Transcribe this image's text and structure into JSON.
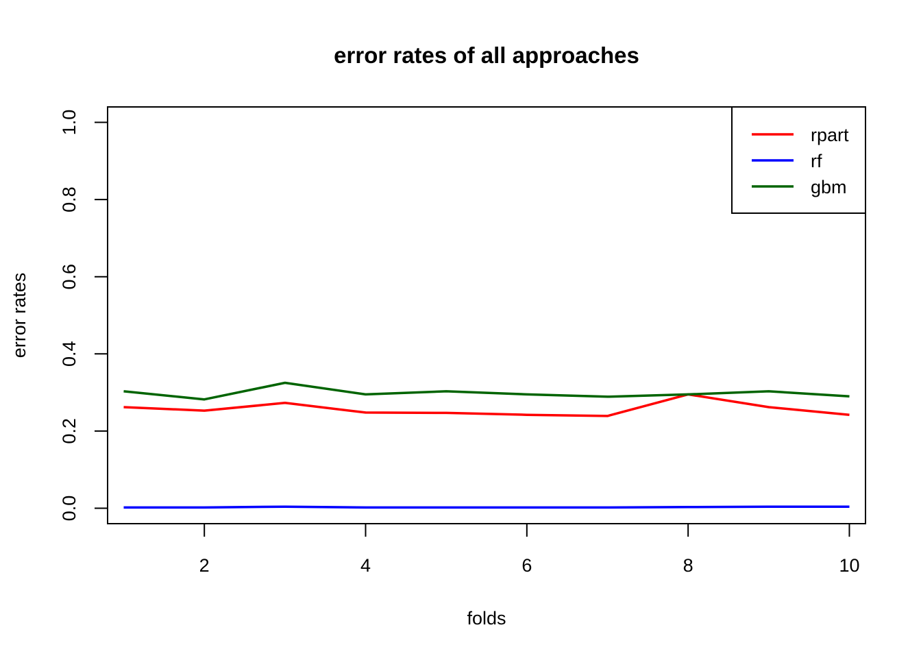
{
  "chart_data": {
    "type": "line",
    "title": "error rates of all approaches",
    "xlabel": "folds",
    "ylabel": "error rates",
    "x": [
      1,
      2,
      3,
      4,
      5,
      6,
      7,
      8,
      9,
      10
    ],
    "xlim": [
      0.8,
      10.2
    ],
    "ylim": [
      -0.04,
      1.04
    ],
    "xticks": [
      2,
      4,
      6,
      8,
      10
    ],
    "xtick_labels": [
      "2",
      "4",
      "6",
      "8",
      "10"
    ],
    "yticks": [
      0.0,
      0.2,
      0.4,
      0.6,
      0.8,
      1.0
    ],
    "ytick_labels": [
      "0.0",
      "0.2",
      "0.4",
      "0.6",
      "0.8",
      "1.0"
    ],
    "grid": false,
    "legend_position": "top-right",
    "series": [
      {
        "name": "rpart",
        "color": "#ff0000",
        "values": [
          0.262,
          0.253,
          0.273,
          0.248,
          0.247,
          0.242,
          0.239,
          0.295,
          0.262,
          0.242
        ]
      },
      {
        "name": "rf",
        "color": "#0000ff",
        "values": [
          0.002,
          0.002,
          0.004,
          0.002,
          0.002,
          0.002,
          0.002,
          0.003,
          0.004,
          0.004
        ]
      },
      {
        "name": "gbm",
        "color": "#006400",
        "values": [
          0.303,
          0.282,
          0.325,
          0.295,
          0.303,
          0.295,
          0.289,
          0.295,
          0.303,
          0.29
        ]
      }
    ]
  }
}
